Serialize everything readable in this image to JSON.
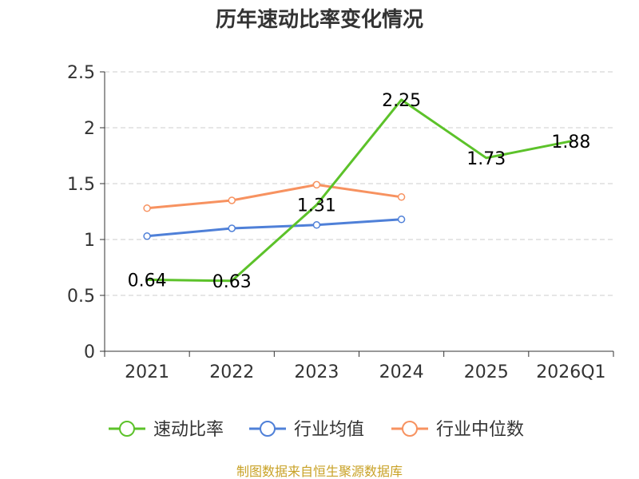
{
  "chart_data": {
    "type": "line",
    "title": "历年速动比率变化情况",
    "categories": [
      "2021",
      "2022",
      "2023",
      "2024",
      "2025",
      "2026Q1"
    ],
    "yticks": [
      "0",
      "0.5",
      "1",
      "1.5",
      "2",
      "2.5"
    ],
    "ylim": [
      0,
      2.5
    ],
    "grid": true,
    "legend_position": "bottom",
    "series": [
      {
        "name": "速动比率",
        "color": "#5cc22a",
        "values": [
          0.64,
          0.63,
          1.31,
          2.25,
          1.73,
          1.88
        ],
        "labels": [
          "0.64",
          "0.63",
          "1.31",
          "2.25",
          "1.73",
          "1.88"
        ],
        "show_labels": true,
        "markers": false
      },
      {
        "name": "行业均值",
        "color": "#4f80d8",
        "values": [
          1.03,
          1.1,
          1.13,
          1.18,
          null,
          null
        ],
        "show_labels": false,
        "markers": true
      },
      {
        "name": "行业中位数",
        "color": "#f79260",
        "values": [
          1.28,
          1.35,
          1.49,
          1.38,
          null,
          null
        ],
        "show_labels": false,
        "markers": true
      }
    ]
  },
  "source": "制图数据来自恒生聚源数据库"
}
